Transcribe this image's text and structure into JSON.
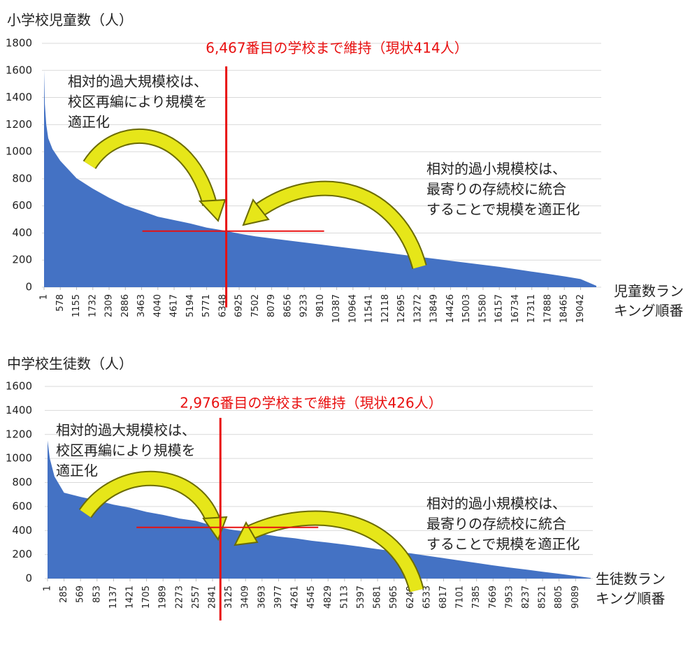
{
  "chart_data": [
    {
      "type": "area",
      "title": "小学校児童数（人）",
      "annotation_title": "6,467番目の学校まで維持（現状414人）",
      "x_label": [
        "児童数ラン",
        "キング順番"
      ],
      "annotations": [
        {
          "lines": [
            "相対的過大規模校は、",
            "校区再編により規模を",
            "適正化"
          ]
        },
        {
          "lines": [
            "相対的過小規模校は、",
            "最寄りの存続校に統合",
            "することで規模を適正化"
          ]
        }
      ],
      "marker": {
        "x": 6467,
        "y": 414
      },
      "marker_color": "#e81010",
      "color": "#4472c4",
      "grid": true,
      "xlim": [
        1,
        19650
      ],
      "ylim": [
        0,
        1800
      ],
      "yticks": [
        0,
        200,
        400,
        600,
        800,
        1000,
        1200,
        1400,
        1600,
        1800
      ],
      "xticks": [
        1,
        578,
        1155,
        1732,
        2309,
        2886,
        3463,
        4040,
        4617,
        5194,
        5771,
        6348,
        6925,
        7502,
        8079,
        8656,
        9233,
        9810,
        10387,
        10964,
        11541,
        12118,
        12695,
        13272,
        13849,
        14426,
        15003,
        15580,
        16157,
        16734,
        17311,
        17888,
        18465,
        19042
      ],
      "x": [
        1,
        30,
        80,
        150,
        300,
        578,
        1155,
        1732,
        2309,
        2886,
        3463,
        4040,
        4617,
        5194,
        5771,
        6348,
        6925,
        7502,
        8079,
        8656,
        9233,
        9810,
        10387,
        10964,
        11541,
        12118,
        12695,
        13272,
        13849,
        14426,
        15003,
        15580,
        16157,
        16734,
        17311,
        17888,
        18465,
        19042,
        19600
      ],
      "values": [
        1600,
        1350,
        1200,
        1100,
        1020,
        933,
        804,
        727,
        660,
        603,
        562,
        520,
        495,
        470,
        440,
        420,
        395,
        375,
        360,
        345,
        330,
        315,
        300,
        285,
        270,
        255,
        240,
        225,
        210,
        195,
        180,
        165,
        150,
        133,
        115,
        98,
        80,
        60,
        10
      ]
    },
    {
      "type": "area",
      "title": "中学校生徒数（人）",
      "annotation_title": "2,976番目の学校まで維持（現状426人）",
      "x_label": [
        "生徒数ラン",
        "キング順番"
      ],
      "annotations": [
        {
          "lines": [
            "相対的過大規模校は、",
            "校区再編により規模を",
            "適正化"
          ]
        },
        {
          "lines": [
            "相対的過小規模校は、",
            "最寄りの存続校に統合",
            "することで規模を適正化"
          ]
        }
      ],
      "marker": {
        "x": 2976,
        "y": 426
      },
      "marker_color": "#e81010",
      "color": "#4472c4",
      "grid": true,
      "xlim": [
        1,
        9350
      ],
      "ylim": [
        0,
        1600
      ],
      "yticks": [
        0,
        200,
        400,
        600,
        800,
        1000,
        1200,
        1400,
        1600
      ],
      "xticks": [
        1,
        285,
        569,
        853,
        1137,
        1421,
        1705,
        1989,
        2273,
        2557,
        2841,
        3125,
        3409,
        3693,
        3977,
        4261,
        4545,
        4829,
        5113,
        5397,
        5681,
        5965,
        6249,
        6533,
        6817,
        7101,
        7385,
        7669,
        7953,
        8237,
        8521,
        8805,
        9089
      ],
      "x": [
        1,
        40,
        120,
        285,
        569,
        853,
        1137,
        1421,
        1705,
        1989,
        2273,
        2557,
        2841,
        3125,
        3409,
        3693,
        3977,
        4261,
        4545,
        4829,
        5113,
        5397,
        5681,
        5965,
        6249,
        6533,
        6817,
        7101,
        7385,
        7669,
        7953,
        8237,
        8521,
        8805,
        9089,
        9350
      ],
      "values": [
        1150,
        1000,
        850,
        715,
        680,
        650,
        615,
        590,
        555,
        530,
        500,
        480,
        440,
        410,
        390,
        370,
        350,
        335,
        315,
        300,
        283,
        265,
        245,
        228,
        210,
        190,
        170,
        150,
        130,
        110,
        92,
        75,
        57,
        40,
        22,
        5
      ]
    }
  ]
}
